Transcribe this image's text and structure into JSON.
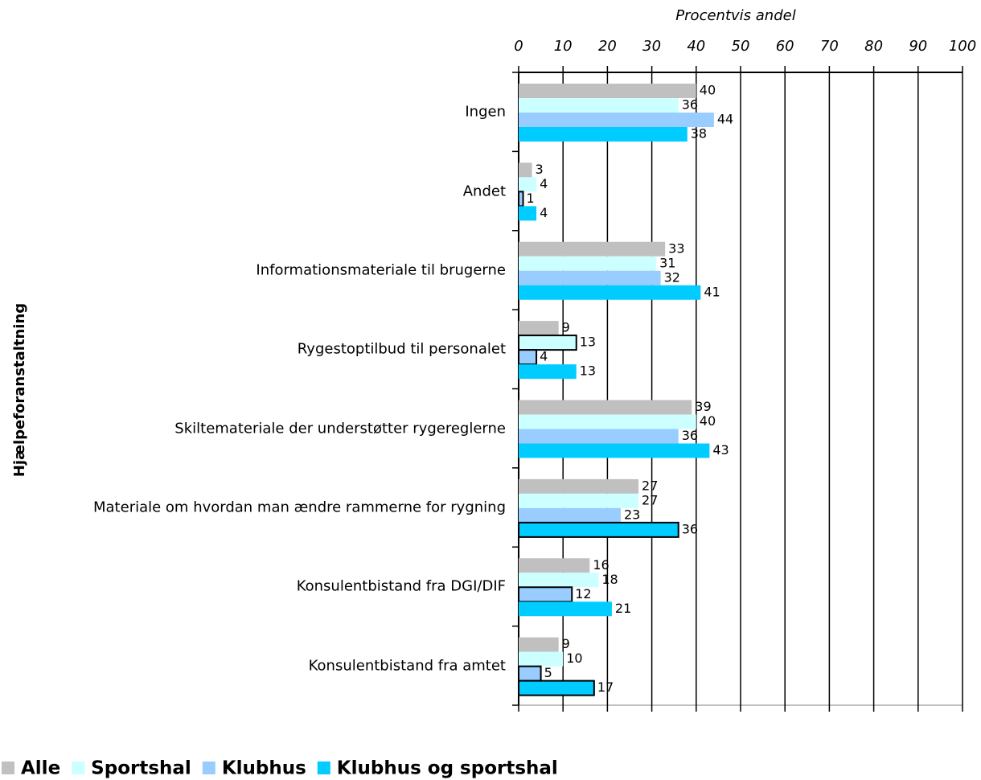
{
  "chart_data": {
    "type": "bar",
    "orientation": "horizontal",
    "x_axis_label": "Procentvis andel",
    "y_axis_label": "Hjælpeforanstaltning",
    "categories": [
      "Ingen",
      "Andet",
      "Informationsmateriale til brugerne",
      "Rygestoptilbud til personalet",
      "Skiltemateriale der understøtter rygereglerne",
      "Materiale om hvordan man ændre rammerne for rygning",
      "Konsulentbistand fra DGI/DIF",
      "Konsulentbistand fra amtet"
    ],
    "series": [
      {
        "name": "Alle",
        "color": "#c0c0c0",
        "values": [
          40,
          3,
          33,
          9,
          39,
          27,
          16,
          9
        ],
        "outlined": [
          false,
          false,
          false,
          false,
          false,
          false,
          false,
          false
        ]
      },
      {
        "name": "Sportshal",
        "color": "#ccffff",
        "values": [
          36,
          4,
          31,
          13,
          40,
          27,
          18,
          10
        ],
        "outlined": [
          false,
          false,
          false,
          true,
          false,
          false,
          false,
          false
        ]
      },
      {
        "name": "Klubhus",
        "color": "#99ccff",
        "values": [
          44,
          1,
          32,
          4,
          36,
          23,
          12,
          5
        ],
        "outlined": [
          false,
          true,
          false,
          true,
          false,
          false,
          true,
          true
        ]
      },
      {
        "name": "Klubhus og sportshal",
        "color": "#00ccff",
        "values": [
          38,
          4,
          41,
          13,
          43,
          36,
          21,
          17
        ],
        "outlined": [
          false,
          false,
          false,
          false,
          false,
          true,
          false,
          true
        ]
      }
    ],
    "xlim": [
      0,
      100
    ],
    "xticks": [
      0,
      10,
      20,
      30,
      40,
      50,
      60,
      70,
      80,
      90,
      100
    ],
    "grid": true,
    "legend": "bottom"
  }
}
